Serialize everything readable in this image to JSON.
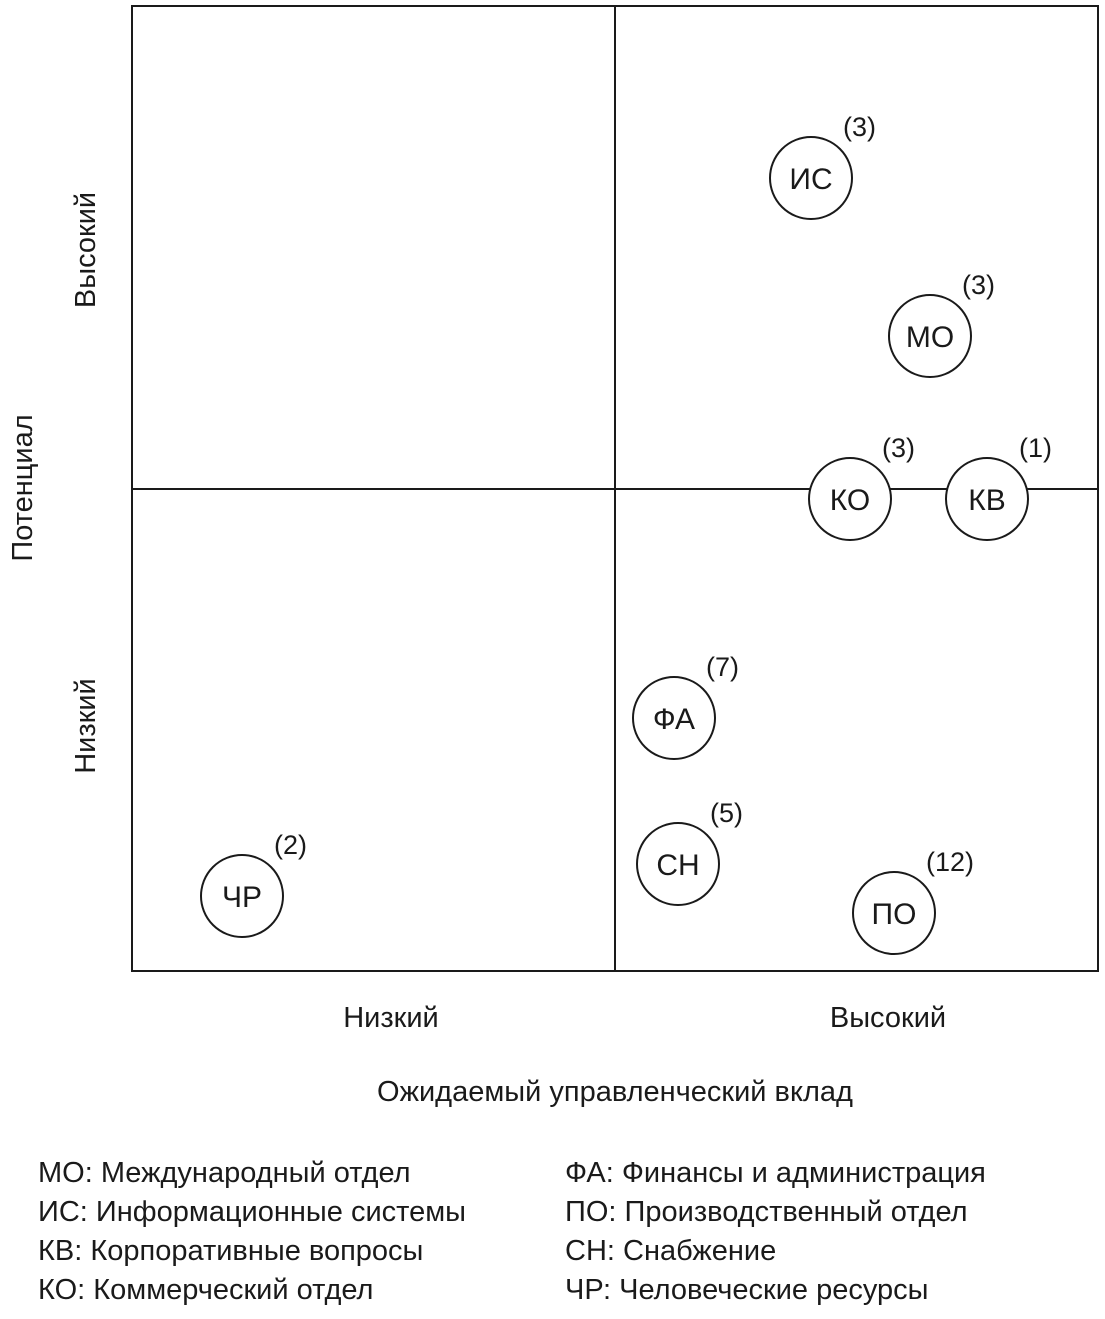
{
  "axes": {
    "x_title": "Ожидаемый управленческий вклад",
    "x_low": "Низкий",
    "x_high": "Высокий",
    "y_title": "Потенциал",
    "y_low": "Низкий",
    "y_high": "Высокий"
  },
  "units": [
    {
      "code": "ИС",
      "count": "(3)",
      "quadrant": "high-contribution / high-potential"
    },
    {
      "code": "МО",
      "count": "(3)",
      "quadrant": "high-contribution / high-potential"
    },
    {
      "code": "КО",
      "count": "(3)",
      "quadrant": "high-contribution / on boundary"
    },
    {
      "code": "КВ",
      "count": "(1)",
      "quadrant": "high-contribution / on boundary"
    },
    {
      "code": "ФА",
      "count": "(7)",
      "quadrant": "high-contribution / low-potential"
    },
    {
      "code": "СН",
      "count": "(5)",
      "quadrant": "high-contribution / low-potential"
    },
    {
      "code": "ПО",
      "count": "(12)",
      "quadrant": "high-contribution / low-potential"
    },
    {
      "code": "ЧР",
      "count": "(2)",
      "quadrant": "low-contribution / low-potential"
    }
  ],
  "legend": {
    "left": [
      "МО: Международный отдел",
      "ИС: Информационные системы",
      "КВ: Корпоративные вопросы",
      "КО: Коммерческий отдел"
    ],
    "right": [
      "ФА: Финансы и администрация",
      "ПО: Производственный отдел",
      "СН: Снабжение",
      "ЧР: Человеческие ресурсы"
    ]
  }
}
